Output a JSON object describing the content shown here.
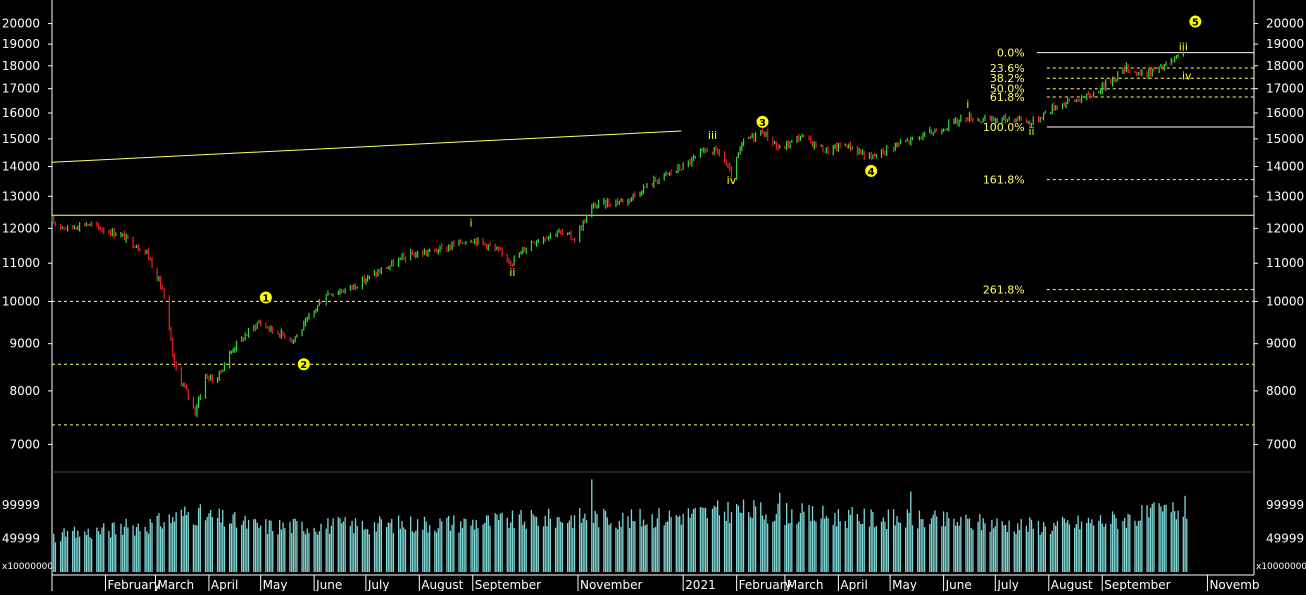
{
  "colors": {
    "background": "#000000",
    "axis": "#ffffff",
    "up_bar": "#33dd33",
    "down_bar": "#ee2222",
    "volume": "#7fd6d6",
    "fib_line": "#ffff66",
    "wave_marker": "#ffff00"
  },
  "chart_data": [
    {
      "type": "ohlc",
      "scale": "log",
      "ylim": [
        6600,
        21000
      ],
      "y_ticks": [
        7000,
        8000,
        9000,
        10000,
        11000,
        12000,
        13000,
        14000,
        15000,
        16000,
        17000,
        18000,
        19000,
        20000
      ],
      "y_tick_labels": [
        "7000",
        "8000",
        "9000",
        "10000",
        "11000",
        "12000",
        "13000",
        "14000",
        "15000",
        "16000",
        "17000",
        "18000",
        "19000",
        "20000"
      ],
      "x_range": [
        "2020-01-01",
        "2021-11-28"
      ],
      "x_tick_labels": [
        {
          "date": "2020-01-01",
          "label": ""
        },
        {
          "date": "2020-02-01",
          "label": "February"
        },
        {
          "date": "2020-03-01",
          "label": "March"
        },
        {
          "date": "2020-04-01",
          "label": "April"
        },
        {
          "date": "2020-05-01",
          "label": "May"
        },
        {
          "date": "2020-06-01",
          "label": "June"
        },
        {
          "date": "2020-07-01",
          "label": "July"
        },
        {
          "date": "2020-08-01",
          "label": "August"
        },
        {
          "date": "2020-09-01",
          "label": "September"
        },
        {
          "date": "2020-11-01",
          "label": "November"
        },
        {
          "date": "2021-01-01",
          "label": "2021"
        },
        {
          "date": "2021-02-01",
          "label": "February"
        },
        {
          "date": "2021-03-01",
          "label": "March"
        },
        {
          "date": "2021-04-01",
          "label": "April"
        },
        {
          "date": "2021-05-01",
          "label": "May"
        },
        {
          "date": "2021-06-01",
          "label": "June"
        },
        {
          "date": "2021-07-01",
          "label": "July"
        },
        {
          "date": "2021-08-01",
          "label": "August"
        },
        {
          "date": "2021-09-01",
          "label": "September"
        },
        {
          "date": "2021-11-01",
          "label": "Novemb"
        }
      ],
      "price_path": [
        {
          "date": "2020-01-01",
          "close": 12200
        },
        {
          "date": "2020-01-10",
          "close": 12000
        },
        {
          "date": "2020-01-20",
          "close": 12150
        },
        {
          "date": "2020-02-10",
          "close": 11800
        },
        {
          "date": "2020-02-25",
          "close": 11300
        },
        {
          "date": "2020-03-05",
          "close": 10300
        },
        {
          "date": "2020-03-12",
          "close": 8500
        },
        {
          "date": "2020-03-20",
          "close": 7900
        },
        {
          "date": "2020-03-24",
          "close": 7600
        },
        {
          "date": "2020-03-30",
          "close": 8300
        },
        {
          "date": "2020-04-05",
          "close": 8200
        },
        {
          "date": "2020-04-15",
          "close": 8900
        },
        {
          "date": "2020-04-30",
          "close": 9500
        },
        {
          "date": "2020-05-08",
          "close": 9300
        },
        {
          "date": "2020-05-20",
          "close": 9100
        },
        {
          "date": "2020-05-26",
          "close": 9400
        },
        {
          "date": "2020-06-08",
          "close": 10200
        },
        {
          "date": "2020-06-20",
          "close": 10300
        },
        {
          "date": "2020-07-10",
          "close": 10800
        },
        {
          "date": "2020-07-25",
          "close": 11200
        },
        {
          "date": "2020-08-15",
          "close": 11400
        },
        {
          "date": "2020-08-31",
          "close": 11700
        },
        {
          "date": "2020-09-10",
          "close": 11500
        },
        {
          "date": "2020-09-24",
          "close": 11050
        },
        {
          "date": "2020-10-05",
          "close": 11600
        },
        {
          "date": "2020-10-20",
          "close": 11900
        },
        {
          "date": "2020-10-30",
          "close": 11700
        },
        {
          "date": "2020-11-10",
          "close": 12700
        },
        {
          "date": "2020-11-30",
          "close": 12900
        },
        {
          "date": "2020-12-15",
          "close": 13500
        },
        {
          "date": "2021-01-01",
          "close": 14000
        },
        {
          "date": "2021-01-15",
          "close": 14600
        },
        {
          "date": "2021-01-22",
          "close": 14500
        },
        {
          "date": "2021-01-29",
          "close": 13700
        },
        {
          "date": "2021-02-05",
          "close": 14900
        },
        {
          "date": "2021-02-16",
          "close": 15300
        },
        {
          "date": "2021-02-26",
          "close": 14600
        },
        {
          "date": "2021-03-10",
          "close": 15100
        },
        {
          "date": "2021-03-25",
          "close": 14550
        },
        {
          "date": "2021-04-05",
          "close": 14800
        },
        {
          "date": "2021-04-20",
          "close": 14300
        },
        {
          "date": "2021-05-01",
          "close": 14700
        },
        {
          "date": "2021-05-20",
          "close": 15100
        },
        {
          "date": "2021-06-15",
          "close": 15850
        },
        {
          "date": "2021-06-25",
          "close": 15700
        },
        {
          "date": "2021-07-15",
          "close": 15800
        },
        {
          "date": "2021-07-22",
          "close": 15600
        },
        {
          "date": "2021-08-05",
          "close": 16300
        },
        {
          "date": "2021-08-25",
          "close": 16700
        },
        {
          "date": "2021-09-05",
          "close": 17300
        },
        {
          "date": "2021-09-15",
          "close": 17900
        },
        {
          "date": "2021-09-24",
          "close": 17600
        },
        {
          "date": "2021-10-05",
          "close": 17900
        },
        {
          "date": "2021-10-18",
          "close": 18500
        }
      ],
      "horizontal_lines": [
        {
          "y": 12400,
          "style": "solid"
        },
        {
          "y": 10000,
          "style": "dashed"
        },
        {
          "y": 8550,
          "style": "dashed"
        },
        {
          "y": 7350,
          "style": "dashed"
        }
      ],
      "trend_line": {
        "from": {
          "date": "2020-01-01",
          "y": 14150
        },
        "to": {
          "date": "2020-12-31",
          "y": 15300
        }
      },
      "fibonacci_levels": [
        {
          "label": "0.0%",
          "y": 18600,
          "style": "solid"
        },
        {
          "label": "23.6%",
          "y": 17900,
          "style": "dashed"
        },
        {
          "label": "38.2%",
          "y": 17450,
          "style": "dashed"
        },
        {
          "label": "50.0%",
          "y": 17000,
          "style": "dashed"
        },
        {
          "label": "61.8%",
          "y": 16650,
          "style": "dashed"
        },
        {
          "label": "100.0%",
          "y": 15450,
          "style": "solid"
        },
        {
          "label": "161.8%",
          "y": 13550,
          "style": "dashed"
        },
        {
          "label": "261.8%",
          "y": 10300,
          "style": "dashed"
        }
      ],
      "fib_start_date": "2021-08-01",
      "wave_labels": [
        {
          "label": "1",
          "date": "2020-05-04",
          "y": 10100,
          "circled": true
        },
        {
          "label": "2",
          "date": "2020-05-26",
          "y": 8550,
          "circled": true
        },
        {
          "label": "3",
          "date": "2021-02-16",
          "y": 15650,
          "circled": true
        },
        {
          "label": "4",
          "date": "2021-04-20",
          "y": 13850,
          "circled": true
        },
        {
          "label": "5",
          "date": "2021-10-25",
          "y": 20100,
          "circled": true
        },
        {
          "label": "i",
          "date": "2020-08-31",
          "y": 12050,
          "circled": false
        },
        {
          "label": "ii",
          "date": "2020-09-24",
          "y": 10650,
          "circled": false
        },
        {
          "label": "iii",
          "date": "2021-01-18",
          "y": 15000,
          "circled": false
        },
        {
          "label": "iv",
          "date": "2021-01-29",
          "y": 13400,
          "circled": false
        },
        {
          "label": "i",
          "date": "2021-06-15",
          "y": 16200,
          "circled": false
        },
        {
          "label": "ii",
          "date": "2021-07-22",
          "y": 15150,
          "circled": false
        },
        {
          "label": "iii",
          "date": "2021-10-18",
          "y": 18700,
          "circled": false
        },
        {
          "label": "iv",
          "date": "2021-10-20",
          "y": 17400,
          "circled": false
        }
      ]
    },
    {
      "type": "bar",
      "name": "volume",
      "y_ticks": [
        49999,
        99999
      ],
      "y_tick_labels": [
        "49999",
        "99999"
      ],
      "multiplier_label": "x10000000",
      "ylim": [
        0,
        140000
      ],
      "volume_profile": [
        {
          "date": "2020-01-01",
          "value": 52000
        },
        {
          "date": "2020-03-01",
          "value": 72000
        },
        {
          "date": "2020-03-20",
          "value": 88000
        },
        {
          "date": "2020-05-01",
          "value": 68000
        },
        {
          "date": "2020-07-01",
          "value": 70000
        },
        {
          "date": "2020-09-01",
          "value": 74000
        },
        {
          "date": "2020-11-10",
          "value": 82000
        },
        {
          "date": "2020-12-01",
          "value": 78000
        },
        {
          "date": "2021-02-01",
          "value": 92000
        },
        {
          "date": "2021-04-01",
          "value": 82000
        },
        {
          "date": "2021-06-01",
          "value": 76000
        },
        {
          "date": "2021-08-01",
          "value": 68000
        },
        {
          "date": "2021-09-15",
          "value": 80000
        },
        {
          "date": "2021-10-20",
          "value": 95000
        }
      ],
      "volume_spikes": [
        {
          "date": "2020-11-09",
          "value": 138000
        },
        {
          "date": "2021-02-26",
          "value": 118000
        },
        {
          "date": "2021-05-13",
          "value": 120000
        }
      ]
    }
  ]
}
